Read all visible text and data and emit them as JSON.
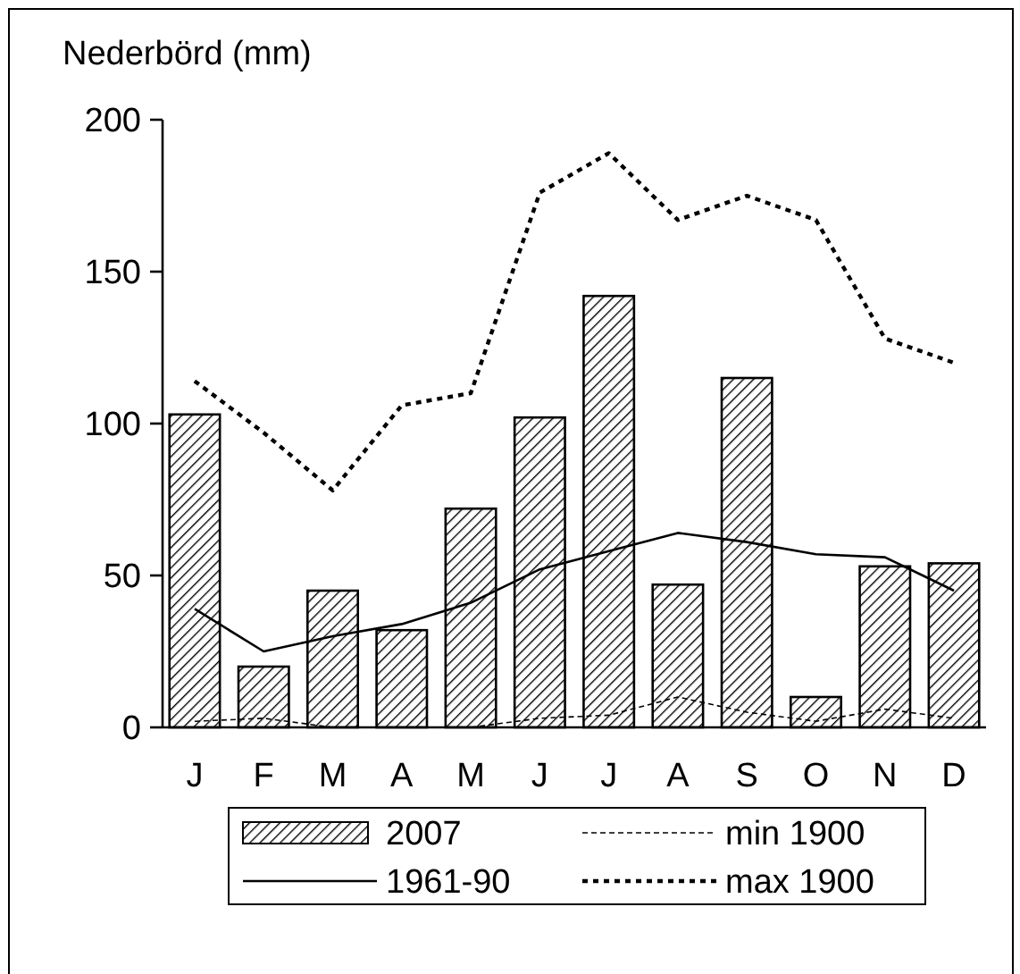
{
  "chart_data": {
    "type": "bar",
    "ylabel": "Nederbörd (mm)",
    "categories": [
      "J",
      "F",
      "M",
      "A",
      "M",
      "J",
      "J",
      "A",
      "S",
      "O",
      "N",
      "D"
    ],
    "ylim": [
      0,
      200
    ],
    "yticks": [
      0,
      50,
      100,
      150,
      200
    ],
    "grid": false,
    "legend": "bottom",
    "series": [
      {
        "name": "2007",
        "color": "#000000",
        "values": [
          103,
          20,
          45,
          32,
          72,
          102,
          142,
          47,
          115,
          10,
          53,
          54
        ]
      },
      {
        "name": "min 1900",
        "type": "line",
        "color": "#000000",
        "line_style": "dashed",
        "values": [
          2,
          3,
          0,
          0,
          0,
          3,
          4,
          10,
          5,
          2,
          6,
          3
        ]
      },
      {
        "name": "1961-90",
        "type": "line",
        "color": "#000000",
        "line_style": "solid",
        "values": [
          39,
          25,
          30,
          34,
          41,
          52,
          58,
          64,
          61,
          57,
          56,
          45
        ]
      },
      {
        "name": "max 1900",
        "type": "line",
        "color": "#000000",
        "line_style": "dotted",
        "values": [
          114,
          97,
          78,
          106,
          110,
          176,
          189,
          167,
          175,
          167,
          128,
          120
        ]
      }
    ]
  }
}
